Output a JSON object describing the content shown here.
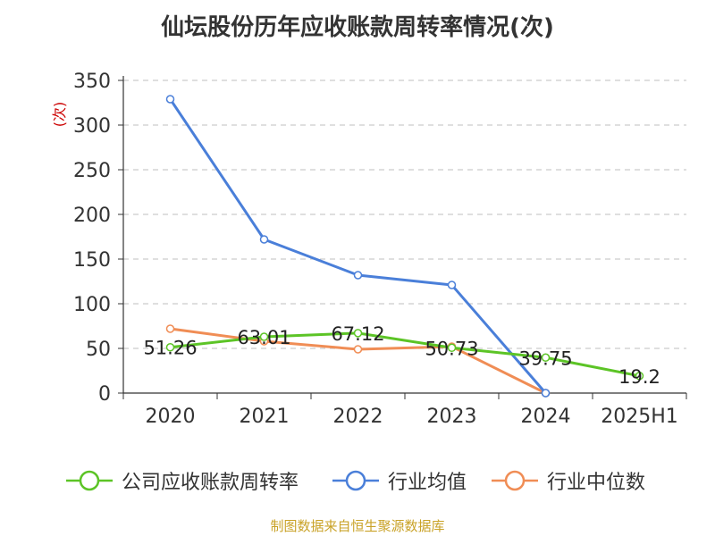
{
  "chart_data": {
    "type": "line",
    "title": "仙坛股份历年应收账款周转率情况(次)",
    "ylabel": "(次)",
    "categories": [
      "2020",
      "2021",
      "2022",
      "2023",
      "2024",
      "2025H1"
    ],
    "yticks": [
      "0",
      "50",
      "100",
      "150",
      "200",
      "250",
      "300",
      "350"
    ],
    "ylim": [
      0,
      350
    ],
    "grid": true,
    "legend_position": "bottom",
    "series": [
      {
        "name": "公司应收账款周转率",
        "color": "#5cc426",
        "values": [
          51.26,
          63.01,
          67.12,
          50.73,
          39.75,
          19.2
        ],
        "labels": [
          "51.26",
          "63.01",
          "67.12",
          "50.73",
          "39.75",
          "19.2"
        ]
      },
      {
        "name": "行业均值",
        "color": "#4a7fd9",
        "values": [
          329,
          172,
          132,
          121,
          0,
          null
        ]
      },
      {
        "name": "行业中位数",
        "color": "#f08d55",
        "values": [
          72,
          58,
          49,
          52,
          0,
          null
        ]
      }
    ]
  },
  "source": "制图数据来自恒生聚源数据库"
}
